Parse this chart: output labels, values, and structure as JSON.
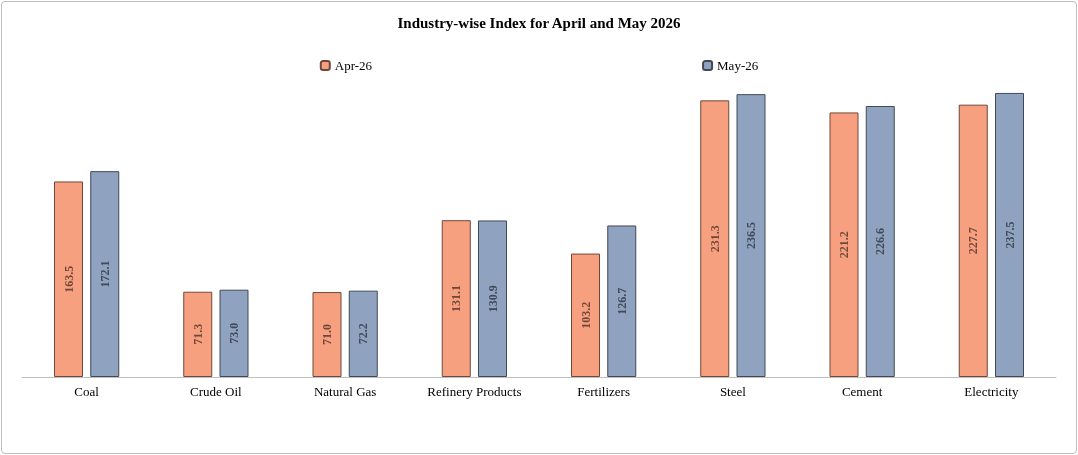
{
  "chart_data": {
    "type": "bar",
    "title": "Industry-wise Index for April and May 2026",
    "categories": [
      "Coal",
      "Crude Oil",
      "Natural Gas",
      "Refinery Products",
      "Fertilizers",
      "Steel",
      "Cement",
      "Electricity"
    ],
    "series": [
      {
        "name": "Apr-26",
        "color": "#f7a07f",
        "values": [
          163.5,
          71.3,
          71.0,
          131.1,
          103.2,
          231.3,
          221.2,
          227.7
        ],
        "value_labels": [
          "163.5",
          "71.3",
          "71.0",
          "131.1",
          "103.2",
          "231.3",
          "221.2",
          "227.7"
        ]
      },
      {
        "name": "May-26",
        "color": "#8fa2c0",
        "values": [
          172.1,
          73.0,
          72.2,
          130.9,
          126.7,
          236.5,
          226.6,
          237.5
        ],
        "value_labels": [
          "172.1",
          "73.0",
          "72.2",
          "130.9",
          "126.7",
          "236.5",
          "226.6",
          "237.5"
        ]
      }
    ],
    "legend": "top"
  }
}
